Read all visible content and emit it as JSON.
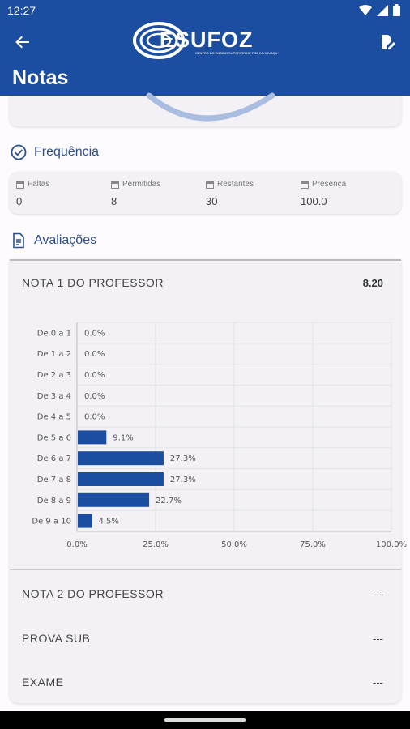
{
  "status_bar": {
    "time": "12:27"
  },
  "app_bar": {
    "logo_text": "ESUFOZ",
    "logo_subtext": "CENTRO DE ENSINO SUPERIOR DE FOZ DO IGUAÇU",
    "title": "Notas"
  },
  "frequency": {
    "header": "Frequência",
    "columns": [
      {
        "label": "Faltas",
        "value": "0"
      },
      {
        "label": "Permitidas",
        "value": "8"
      },
      {
        "label": "Restantes",
        "value": "30"
      },
      {
        "label": "Presença",
        "value": "100.0"
      }
    ]
  },
  "evaluations": {
    "header": "Avaliações",
    "items": [
      {
        "title": "NOTA 1 DO PROFESSOR",
        "value": "8.20"
      },
      {
        "title": "NOTA 2 DO PROFESSOR",
        "value": "---"
      },
      {
        "title": "PROVA SUB",
        "value": "---"
      },
      {
        "title": "EXAME",
        "value": "---"
      }
    ]
  },
  "chart_data": {
    "type": "bar",
    "orientation": "horizontal",
    "categories": [
      "De 0 a 1",
      "De 1 a 2",
      "De 2 a 3",
      "De 3 a 4",
      "De 4 a 5",
      "De 5 a 6",
      "De 6 a 7",
      "De 7 a 8",
      "De 8 a 9",
      "De 9 a 10"
    ],
    "values": [
      0.0,
      0.0,
      0.0,
      0.0,
      0.0,
      9.1,
      27.3,
      27.3,
      22.7,
      4.5
    ],
    "value_labels": [
      "0.0%",
      "0.0%",
      "0.0%",
      "0.0%",
      "0.0%",
      "9.1%",
      "27.3%",
      "27.3%",
      "22.7%",
      "4.5%"
    ],
    "xticks": [
      "0.0%",
      "25.0%",
      "50.0%",
      "75.0%",
      "100.0%"
    ],
    "xlim": [
      0,
      100
    ],
    "grid": true,
    "bar_color": "#1b4da0"
  },
  "colors": {
    "primary": "#1b4da0",
    "accent_text": "#2b4f8f"
  }
}
